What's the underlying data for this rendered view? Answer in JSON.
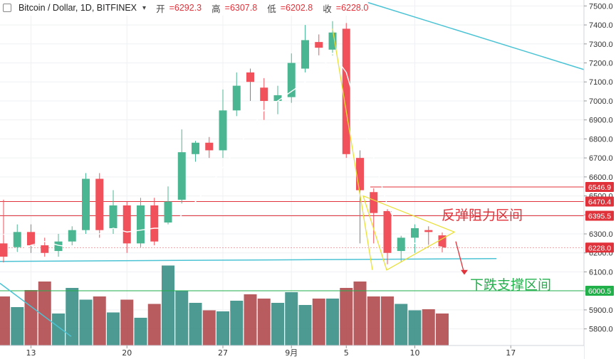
{
  "header": {
    "symbol": "Bitcoin / Dollar, 1D, BITFINEX",
    "open_label": "开",
    "open": "=6292.3",
    "high_label": "高",
    "high": "=6307.8",
    "low_label": "低",
    "low": "=6202.8",
    "close_label": "收",
    "close": "=6228.0"
  },
  "annotations": {
    "resistance": "反弹阻力区间",
    "support": "下跌支撑区间"
  },
  "colors": {
    "up": "#4bb792",
    "down": "#f0515a",
    "vol_up": "#3a8f87",
    "vol_down": "#b04a4e",
    "ma": "#ffffff",
    "triangle": "#e8e03a",
    "support_line": "#4cc3d4",
    "level_red": "#e0323a",
    "level_green": "#22b04b"
  },
  "chart_data": {
    "type": "candlestick",
    "title": "Bitcoin / Dollar, 1D, BITFINEX",
    "ylim": [
      5750,
      7520
    ],
    "y_ticks": [
      5800,
      5900,
      6000,
      6100,
      6200,
      6300,
      6400,
      6500,
      6600,
      6700,
      6800,
      6900,
      7000,
      7100,
      7200,
      7300,
      7400,
      7500
    ],
    "x_ticks": [
      "13",
      "20",
      "27",
      "9月",
      "5",
      "10",
      "17"
    ],
    "x_tick_index": [
      2,
      9,
      16,
      21,
      25,
      30,
      37
    ],
    "price_labels": [
      {
        "text": "6546.9",
        "value": 6546.9,
        "color": "red"
      },
      {
        "text": "6470.4",
        "value": 6470.4,
        "color": "red"
      },
      {
        "text": "6395.5",
        "value": 6395.5,
        "color": "red"
      },
      {
        "text": "6228.0",
        "value": 6228.0,
        "color": "red"
      },
      {
        "text": "6000.5",
        "value": 6000.5,
        "color": "green"
      }
    ],
    "candles": [
      {
        "o": 6250,
        "h": 6480,
        "l": 6150,
        "c": 6180
      },
      {
        "o": 6230,
        "h": 6350,
        "l": 6200,
        "c": 6310
      },
      {
        "o": 6310,
        "h": 6350,
        "l": 6200,
        "c": 6240
      },
      {
        "o": 6240,
        "h": 6280,
        "l": 6180,
        "c": 6200
      },
      {
        "o": 6210,
        "h": 6300,
        "l": 6180,
        "c": 6260
      },
      {
        "o": 6260,
        "h": 6340,
        "l": 6240,
        "c": 6320
      },
      {
        "o": 6320,
        "h": 6620,
        "l": 6300,
        "c": 6590
      },
      {
        "o": 6590,
        "h": 6620,
        "l": 6280,
        "c": 6320
      },
      {
        "o": 6330,
        "h": 6530,
        "l": 6300,
        "c": 6450
      },
      {
        "o": 6450,
        "h": 6470,
        "l": 6200,
        "c": 6250
      },
      {
        "o": 6250,
        "h": 6490,
        "l": 6230,
        "c": 6450
      },
      {
        "o": 6450,
        "h": 6490,
        "l": 6240,
        "c": 6260
      },
      {
        "o": 6360,
        "h": 6550,
        "l": 6350,
        "c": 6470
      },
      {
        "o": 6480,
        "h": 6850,
        "l": 6460,
        "c": 6730
      },
      {
        "o": 6720,
        "h": 6790,
        "l": 6680,
        "c": 6780
      },
      {
        "o": 6780,
        "h": 6810,
        "l": 6700,
        "c": 6740
      },
      {
        "o": 6740,
        "h": 7060,
        "l": 6700,
        "c": 6950
      },
      {
        "o": 6950,
        "h": 7150,
        "l": 6920,
        "c": 7080
      },
      {
        "o": 7150,
        "h": 7170,
        "l": 7000,
        "c": 7100
      },
      {
        "o": 7070,
        "h": 7120,
        "l": 6900,
        "c": 7000
      },
      {
        "o": 7000,
        "h": 7080,
        "l": 6930,
        "c": 7030
      },
      {
        "o": 7020,
        "h": 7250,
        "l": 6990,
        "c": 7200
      },
      {
        "o": 7170,
        "h": 7400,
        "l": 7150,
        "c": 7320
      },
      {
        "o": 7310,
        "h": 7350,
        "l": 7240,
        "c": 7280
      },
      {
        "o": 7270,
        "h": 7420,
        "l": 7240,
        "c": 7360
      },
      {
        "o": 7380,
        "h": 7410,
        "l": 6700,
        "c": 6720
      },
      {
        "o": 6700,
        "h": 6740,
        "l": 6250,
        "c": 6530
      },
      {
        "o": 6520,
        "h": 6540,
        "l": 6250,
        "c": 6410
      },
      {
        "o": 6420,
        "h": 6430,
        "l": 6140,
        "c": 6200
      },
      {
        "o": 6210,
        "h": 6290,
        "l": 6150,
        "c": 6280
      },
      {
        "o": 6280,
        "h": 6350,
        "l": 6200,
        "c": 6330
      },
      {
        "o": 6320,
        "h": 6340,
        "l": 6230,
        "c": 6310
      },
      {
        "o": 6292.3,
        "h": 6307.8,
        "l": 6202.8,
        "c": 6228.0
      }
    ],
    "volume": [
      230,
      180,
      260,
      300,
      150,
      270,
      215,
      230,
      155,
      215,
      130,
      195,
      375,
      255,
      200,
      165,
      160,
      210,
      240,
      220,
      200,
      250,
      190,
      220,
      220,
      270,
      300,
      230,
      230,
      195,
      165,
      170,
      150
    ],
    "volume_top": 420,
    "ma": [
      6300,
      6200,
      6240,
      6260,
      6240,
      6230,
      6270,
      6300,
      6330,
      6310,
      6320,
      6330,
      6330,
      6400,
      6470,
      6550,
      6650,
      6750,
      6850,
      6950,
      7000,
      7050,
      7100,
      7150,
      7250,
      7150,
      6900,
      6700,
      6450,
      6300,
      6250,
      6240,
      6230
    ],
    "resistance_levels": [
      6546.9,
      6470.4,
      6395.5
    ],
    "support_level": 6000.5
  }
}
